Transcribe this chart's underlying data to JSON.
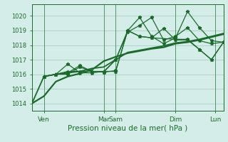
{
  "bg_color": "#d4ede8",
  "grid_color": "#a8d0c8",
  "line_color": "#1a6b2a",
  "xlabel": "Pression niveau de la mer( hPa )",
  "xlim": [
    0,
    48
  ],
  "ylim": [
    1013.5,
    1020.8
  ],
  "yticks": [
    1014,
    1015,
    1016,
    1017,
    1018,
    1019,
    1020
  ],
  "xtick_positions": [
    3,
    18,
    21,
    36,
    46
  ],
  "xtick_labels": [
    "Ven",
    "Mar",
    "Sam",
    "Dim",
    "Lun"
  ],
  "vline_positions": [
    3,
    18,
    21,
    36,
    46
  ],
  "series": [
    {
      "x": [
        0,
        3,
        6,
        9,
        12,
        15,
        18,
        21,
        24,
        27,
        30,
        33,
        36,
        39,
        42,
        45,
        48
      ],
      "y": [
        1014.0,
        1014.5,
        1015.5,
        1015.85,
        1016.05,
        1016.3,
        1016.9,
        1017.2,
        1017.45,
        1017.6,
        1017.75,
        1017.85,
        1018.1,
        1018.2,
        1018.35,
        1018.55,
        1018.75
      ],
      "linewidth": 1.6,
      "linestyle": "solid",
      "marker": null
    },
    {
      "x": [
        0,
        3,
        6,
        9,
        12,
        15,
        18,
        21,
        24,
        27,
        30,
        33,
        36,
        39,
        42,
        45,
        48
      ],
      "y": [
        1014.0,
        1015.85,
        1016.0,
        1016.1,
        1016.2,
        1016.4,
        1016.5,
        1017.0,
        1017.5,
        1017.65,
        1017.8,
        1017.95,
        1018.15,
        1018.25,
        1018.4,
        1018.6,
        1018.8
      ],
      "linewidth": 1.3,
      "linestyle": "solid",
      "marker": null
    },
    {
      "x": [
        3,
        6,
        9,
        12,
        15,
        18,
        21,
        24,
        27,
        30,
        33,
        36,
        39,
        42,
        45,
        48
      ],
      "y": [
        1015.85,
        1016.0,
        1016.7,
        1016.1,
        1016.1,
        1016.2,
        1017.0,
        1018.9,
        1019.35,
        1019.9,
        1018.35,
        1018.6,
        1019.2,
        1018.3,
        1018.1,
        1018.2
      ],
      "linewidth": 0.9,
      "linestyle": "solid",
      "marker": "*"
    },
    {
      "x": [
        3,
        6,
        9,
        12,
        15,
        18,
        21,
        24,
        27,
        30,
        33,
        36,
        39,
        42,
        45,
        48
      ],
      "y": [
        1015.85,
        1016.0,
        1016.1,
        1016.6,
        1016.2,
        1016.15,
        1016.25,
        1019.0,
        1019.9,
        1018.6,
        1018.1,
        1018.5,
        1020.3,
        1019.2,
        1018.3,
        1018.2
      ],
      "linewidth": 0.9,
      "linestyle": "solid",
      "marker": "*"
    },
    {
      "x": [
        3,
        6,
        9,
        12,
        15,
        18,
        21,
        24,
        27,
        30,
        33,
        36,
        39,
        42,
        45,
        48
      ],
      "y": [
        1015.85,
        1016.0,
        1016.0,
        1016.5,
        1016.2,
        1016.2,
        1016.2,
        1019.0,
        1018.6,
        1018.5,
        1019.15,
        1018.35,
        1018.35,
        1017.7,
        1017.0,
        1018.2
      ],
      "linewidth": 0.9,
      "linestyle": "solid",
      "marker": "*"
    },
    {
      "x": [
        3,
        6,
        9,
        12,
        15,
        18,
        21,
        24,
        27,
        30,
        36,
        39,
        42,
        45,
        48
      ],
      "y": [
        1015.85,
        1016.0,
        1016.2,
        1016.2,
        1016.2,
        1016.15,
        1017.0,
        1019.0,
        1018.6,
        1018.5,
        1018.4,
        1018.4,
        1017.7,
        1017.0,
        1018.2
      ],
      "linewidth": 0.9,
      "linestyle": "solid",
      "marker": "*"
    }
  ]
}
